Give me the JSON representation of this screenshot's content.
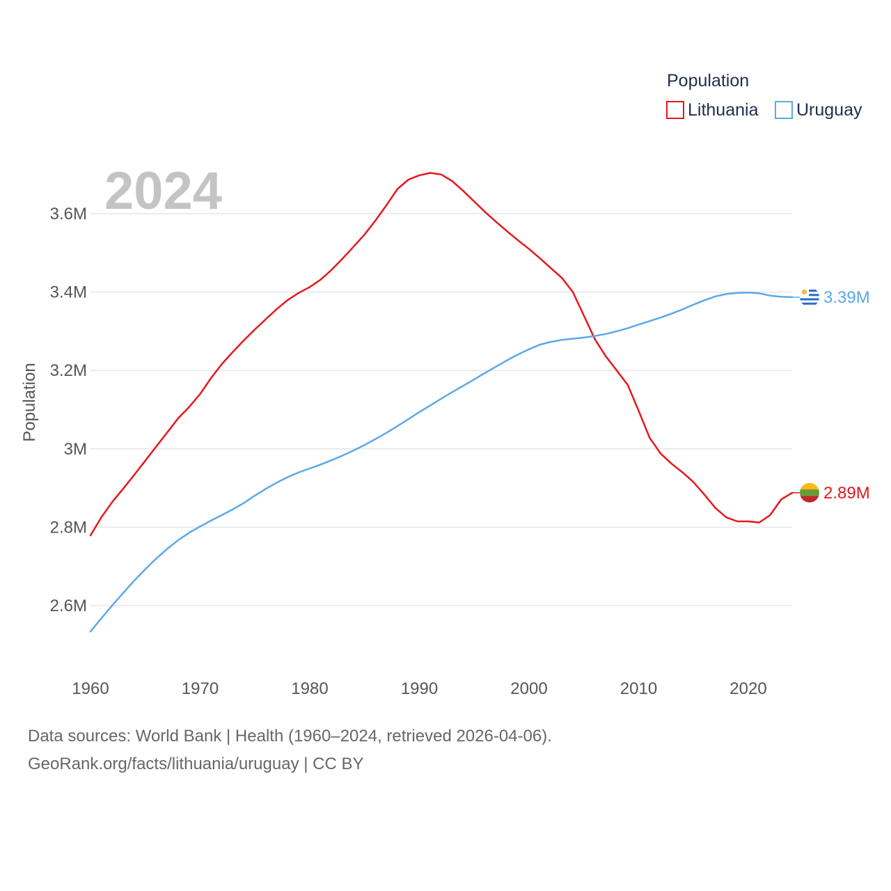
{
  "chart_data": {
    "type": "line",
    "title": "",
    "current_year_label": "2024",
    "xlabel": "",
    "ylabel": "Population",
    "xlim": [
      1960,
      2024
    ],
    "ylim": [
      2500000,
      3750000
    ],
    "x_ticks": [
      1960,
      1970,
      1980,
      1990,
      2000,
      2010,
      2020
    ],
    "x_tick_labels": [
      "1960",
      "1970",
      "1980",
      "1990",
      "2000",
      "2010",
      "2020"
    ],
    "y_ticks": [
      2600000,
      2800000,
      3000000,
      3200000,
      3400000,
      3600000
    ],
    "y_tick_labels": [
      "2.6M",
      "2.8M",
      "3M",
      "3.2M",
      "3.4M",
      "3.6M"
    ],
    "legend": {
      "title": "Population",
      "position": "top-right"
    },
    "x": [
      1960,
      1961,
      1962,
      1963,
      1964,
      1965,
      1966,
      1967,
      1968,
      1969,
      1970,
      1971,
      1972,
      1973,
      1974,
      1975,
      1976,
      1977,
      1978,
      1979,
      1980,
      1981,
      1982,
      1983,
      1984,
      1985,
      1986,
      1987,
      1988,
      1989,
      1990,
      1991,
      1992,
      1993,
      1994,
      1995,
      1996,
      1997,
      1998,
      1999,
      2000,
      2001,
      2002,
      2003,
      2004,
      2005,
      2006,
      2007,
      2008,
      2009,
      2010,
      2011,
      2012,
      2013,
      2014,
      2015,
      2016,
      2017,
      2018,
      2019,
      2020,
      2021,
      2022,
      2023,
      2024
    ],
    "series": [
      {
        "name": "Lithuania",
        "color": "#e8161b",
        "end_label": "2.89M",
        "flag": "lithuania-flag-icon",
        "values": [
          2779000,
          2826000,
          2865000,
          2899000,
          2934000,
          2970000,
          3006000,
          3042000,
          3078000,
          3107000,
          3140000,
          3181000,
          3217000,
          3248000,
          3277000,
          3305000,
          3331000,
          3357000,
          3380000,
          3398000,
          3413000,
          3432000,
          3457000,
          3486000,
          3516000,
          3547000,
          3583000,
          3622000,
          3663000,
          3687000,
          3698000,
          3704000,
          3700000,
          3683000,
          3658000,
          3631000,
          3604000,
          3579000,
          3555000,
          3532000,
          3510000,
          3486000,
          3461000,
          3436000,
          3400000,
          3340000,
          3280000,
          3236000,
          3200000,
          3163000,
          3097000,
          3028000,
          2988000,
          2962000,
          2940000,
          2915000,
          2883000,
          2849000,
          2825000,
          2815000,
          2815000,
          2812000,
          2831000,
          2871000,
          2888000
        ]
      },
      {
        "name": "Uruguay",
        "color": "#5ba8e8",
        "end_label": "3.39M",
        "flag": "uruguay-flag-icon",
        "values": [
          2534000,
          2568000,
          2601000,
          2633000,
          2664000,
          2693000,
          2720000,
          2745000,
          2767000,
          2786000,
          2802000,
          2817000,
          2831000,
          2846000,
          2862000,
          2881000,
          2898000,
          2914000,
          2928000,
          2940000,
          2950000,
          2960000,
          2971000,
          2983000,
          2996000,
          3010000,
          3025000,
          3041000,
          3058000,
          3076000,
          3094000,
          3111000,
          3128000,
          3145000,
          3161000,
          3177000,
          3194000,
          3210000,
          3226000,
          3241000,
          3254000,
          3266000,
          3273000,
          3278000,
          3281000,
          3284000,
          3288000,
          3293000,
          3300000,
          3308000,
          3317000,
          3326000,
          3335000,
          3345000,
          3356000,
          3368000,
          3379000,
          3389000,
          3395000,
          3398000,
          3399000,
          3397000,
          3391000,
          3388000,
          3387000
        ]
      }
    ]
  },
  "footer": {
    "line1": "Data sources: World Bank | Health (1960–2024, retrieved 2026-04-06).",
    "line2": "GeoRank.org/facts/lithuania/uruguay | CC BY"
  }
}
